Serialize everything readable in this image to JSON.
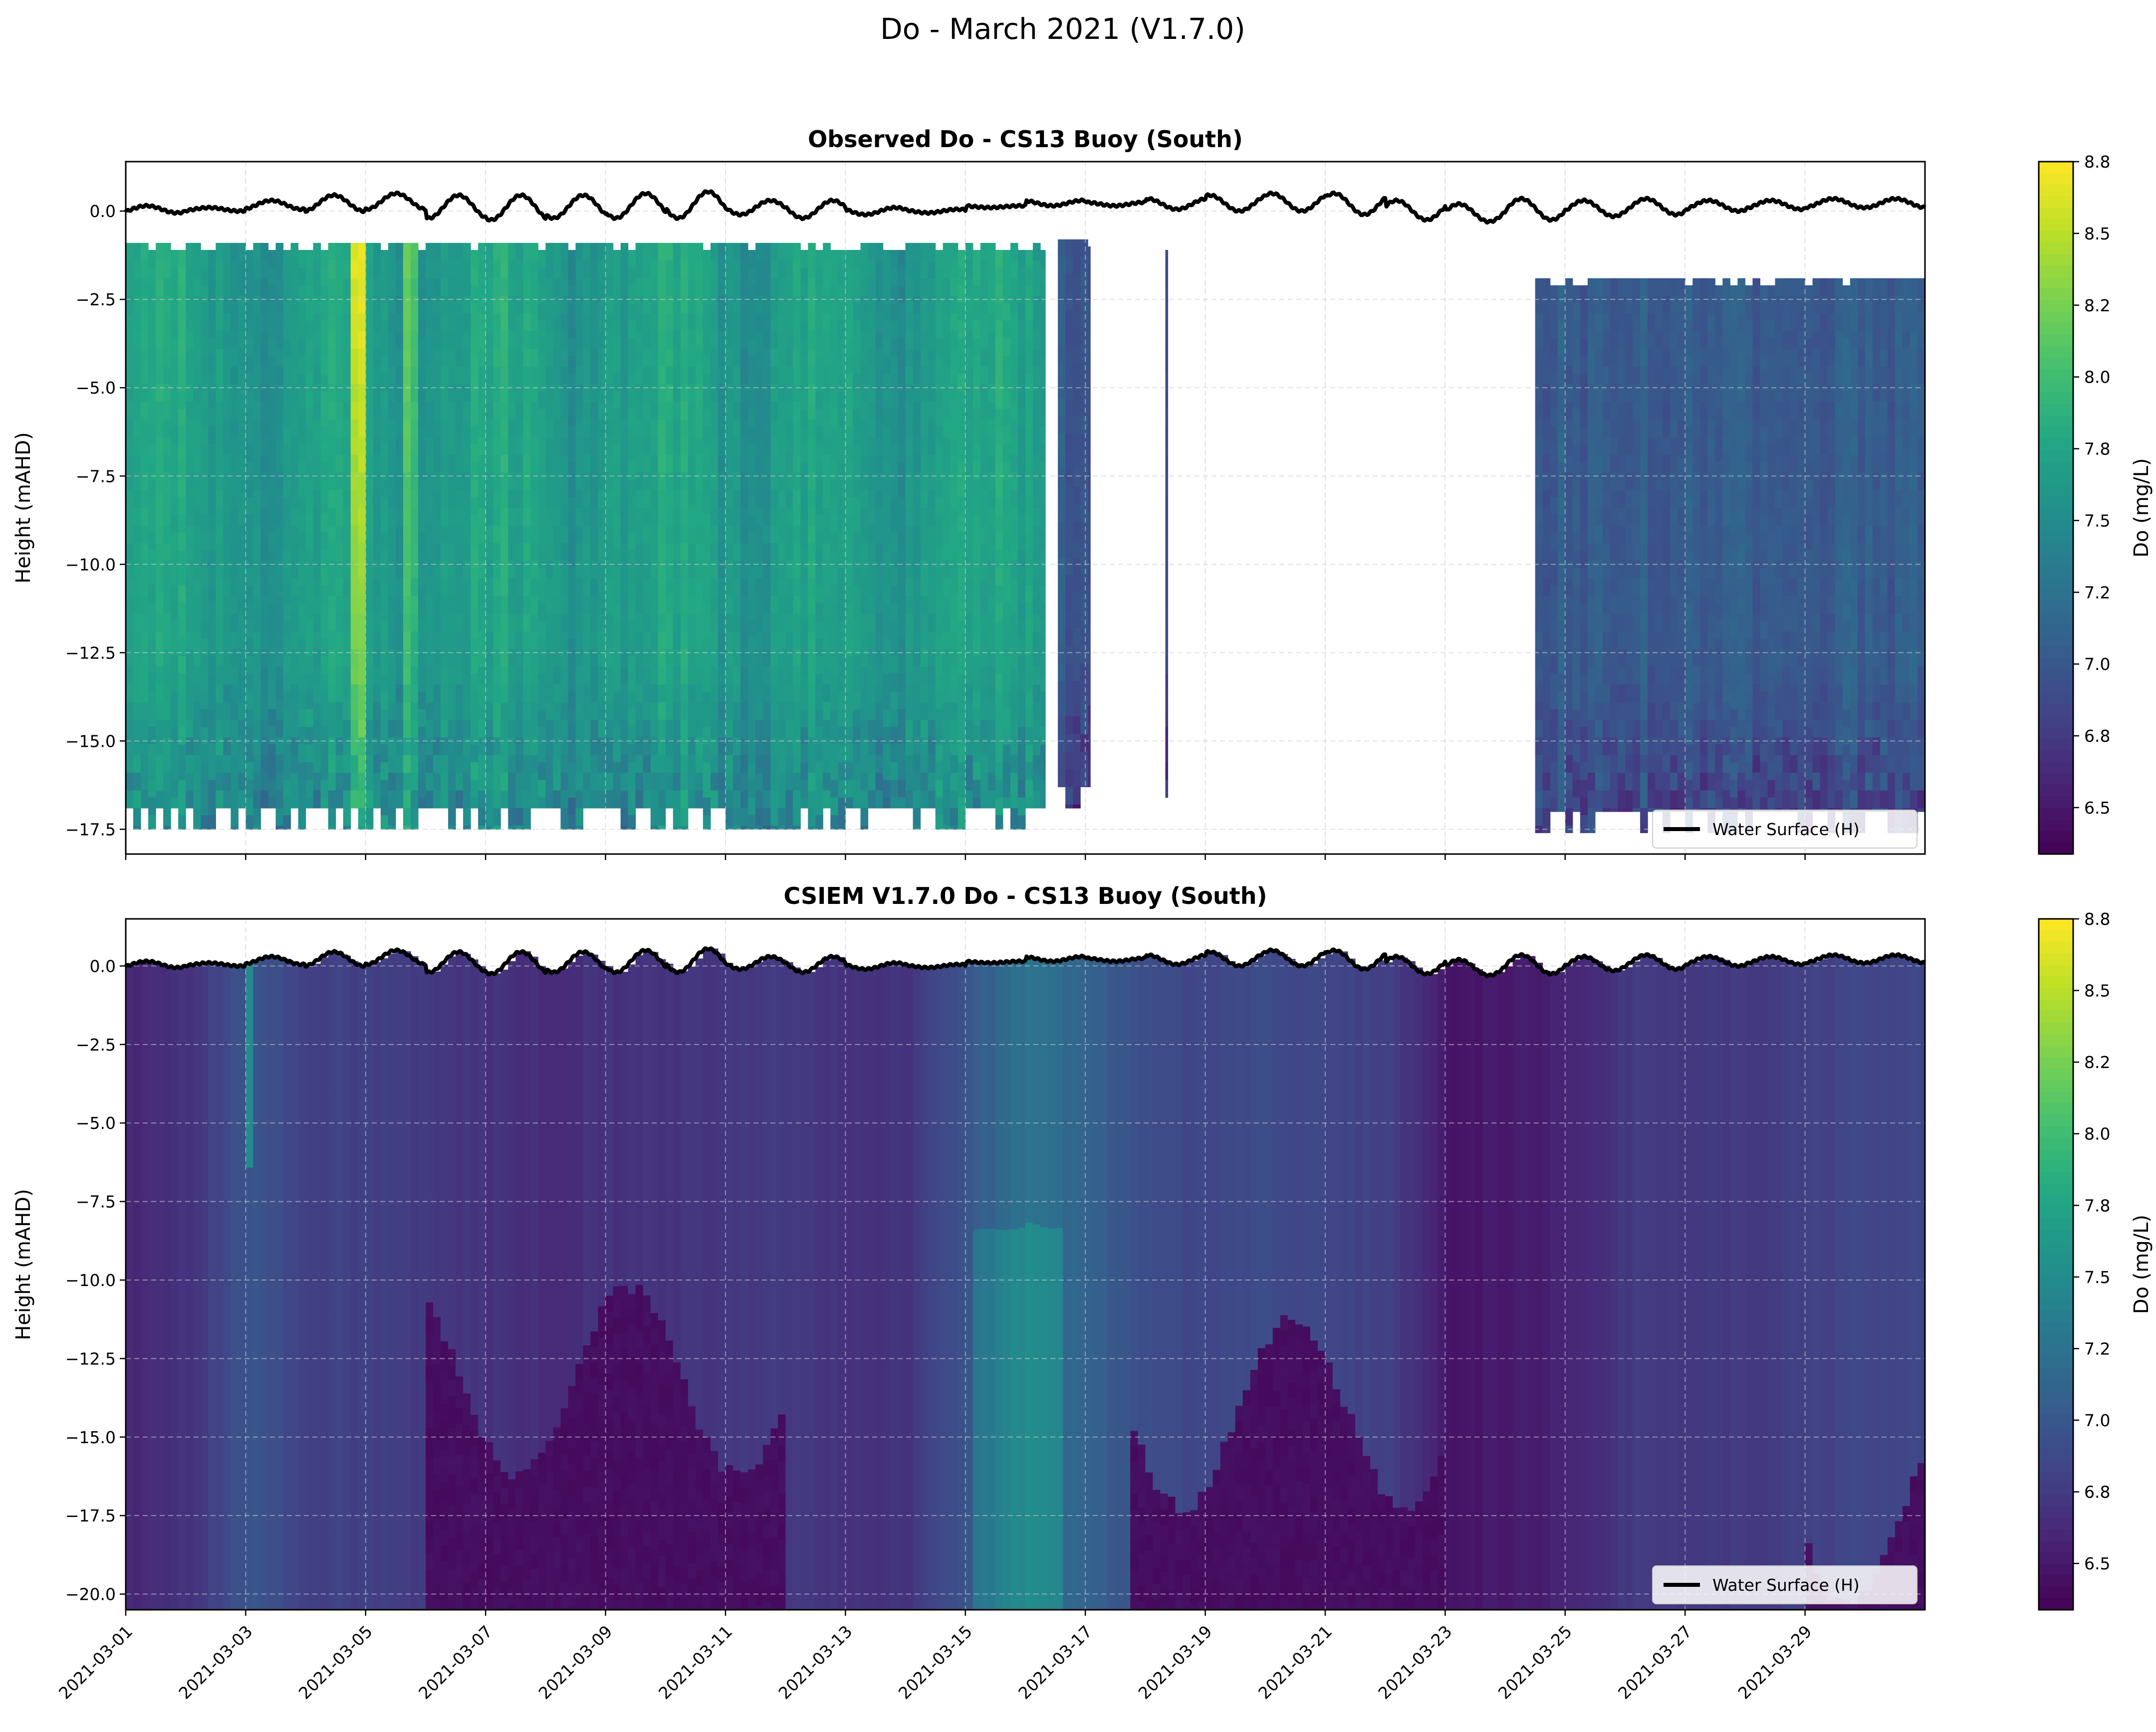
{
  "figure": {
    "title": "Do - March 2021 (V1.7.0)"
  },
  "colors": {
    "colormap": "viridis",
    "water_surface_line": "#000000",
    "grid": "#cccccc"
  },
  "chart_data": [
    {
      "type": "heatmap",
      "title": "Observed Do - CS13 Buoy (South)",
      "xlabel": "",
      "ylabel": "Height (mAHD)",
      "xlim": [
        "2021-03-01",
        "2021-03-31"
      ],
      "ylim": [
        -18.2,
        1.4
      ],
      "yticks": [
        "0.0",
        "−2.5",
        "−5.0",
        "−7.5",
        "−10.0",
        "−12.5",
        "−15.0",
        "−17.5"
      ],
      "ytick_values": [
        0,
        -2.5,
        -5,
        -7.5,
        -10,
        -12.5,
        -15,
        -17.5
      ],
      "xtick_labels_visible": false,
      "grid": true,
      "colorbar": {
        "label": "Do (mg/L)",
        "ticks": [
          "8.8",
          "8.5",
          "8.2",
          "8.0",
          "7.8",
          "7.5",
          "7.2",
          "7.0",
          "6.8",
          "6.5"
        ],
        "range": [
          6.34,
          8.8
        ]
      },
      "legend": {
        "entries": [
          "Water Surface (H)"
        ],
        "placement": "lower right"
      },
      "data_segments": [
        {
          "start": "2021-03-01",
          "end": "2021-03-16 08:00",
          "top": -0.9,
          "bottom": -17.5,
          "typical_value": 7.7,
          "max_value": 8.8
        },
        {
          "start": "2021-03-16 13:00",
          "end": "2021-03-17 02:00",
          "top": -0.8,
          "bottom": -16.9,
          "typical_value": 7.0
        },
        {
          "start": "2021-03-18 08:00",
          "end": "2021-03-18 09:00",
          "top": -0.9,
          "bottom": -16.6,
          "typical_value": 6.9
        },
        {
          "start": "2021-03-24 12:00",
          "end": "2021-03-31",
          "top": -1.9,
          "bottom": -17.6,
          "typical_value": 7.05
        }
      ]
    },
    {
      "type": "heatmap",
      "title": "CSIEM V1.7.0 Do - CS13 Buoy (South)",
      "xlabel": "",
      "ylabel": "Height (mAHD)",
      "xlim": [
        "2021-03-01",
        "2021-03-31"
      ],
      "ylim": [
        -20.5,
        1.5
      ],
      "yticks": [
        "0.0",
        "−2.5",
        "−5.0",
        "−7.5",
        "−10.0",
        "−12.5",
        "−15.0",
        "−17.5",
        "−20.0"
      ],
      "ytick_values": [
        0,
        -2.5,
        -5,
        -7.5,
        -10,
        -12.5,
        -15,
        -17.5,
        -20
      ],
      "xticks": [
        "2021-03-01",
        "2021-03-03",
        "2021-03-05",
        "2021-03-07",
        "2021-03-09",
        "2021-03-11",
        "2021-03-13",
        "2021-03-15",
        "2021-03-17",
        "2021-03-19",
        "2021-03-21",
        "2021-03-23",
        "2021-03-25",
        "2021-03-27",
        "2021-03-29"
      ],
      "grid": true,
      "colorbar": {
        "label": "Do (mg/L)",
        "ticks": [
          "8.8",
          "8.5",
          "8.2",
          "8.0",
          "7.8",
          "7.5",
          "7.2",
          "7.0",
          "6.8",
          "6.5"
        ],
        "range": [
          6.34,
          8.8
        ]
      },
      "legend": {
        "entries": [
          "Water Surface (H)"
        ],
        "placement": "lower right"
      },
      "typical_surface_value_by_day": [
        6.6,
        6.7,
        7.0,
        6.8,
        6.8,
        6.75,
        6.7,
        6.65,
        6.7,
        6.7,
        6.75,
        6.75,
        6.7,
        6.7,
        7.0,
        7.3,
        7.1,
        6.9,
        6.85,
        6.9,
        6.85,
        6.8,
        6.5,
        6.5,
        6.6,
        6.75,
        6.75,
        6.75,
        6.8,
        6.85
      ],
      "bottom_low_zones": [
        {
          "start": "2021-03-06",
          "end": "2021-03-12",
          "top": -13,
          "value": 6.4
        },
        {
          "start": "2021-03-17 18:00",
          "end": "2021-03-23",
          "top": -14,
          "value": 6.4
        },
        {
          "start": "2021-03-29",
          "end": "2021-03-31",
          "top": -17,
          "value": 6.4
        }
      ]
    }
  ],
  "water_surface": {
    "label": "Water Surface (H)",
    "daily_high_m": [
      0.15,
      0.1,
      0.3,
      0.45,
      0.5,
      0.45,
      0.45,
      0.45,
      0.5,
      0.55,
      0.3,
      0.3,
      0.1,
      0.05,
      0.15,
      0.3,
      0.25,
      0.35,
      0.45,
      0.5,
      0.5,
      0.3,
      0.2,
      0.35,
      0.3,
      0.35,
      0.3,
      0.3,
      0.35,
      0.35
    ],
    "daily_low_m": [
      -0.05,
      0.0,
      0.05,
      0.0,
      0.05,
      -0.2,
      -0.25,
      -0.2,
      -0.2,
      -0.2,
      -0.1,
      -0.2,
      -0.1,
      -0.05,
      0.1,
      0.15,
      0.15,
      0.05,
      0.0,
      0.0,
      -0.1,
      -0.25,
      -0.3,
      -0.25,
      -0.15,
      -0.1,
      0.0,
      0.05,
      0.1,
      0.1
    ]
  }
}
